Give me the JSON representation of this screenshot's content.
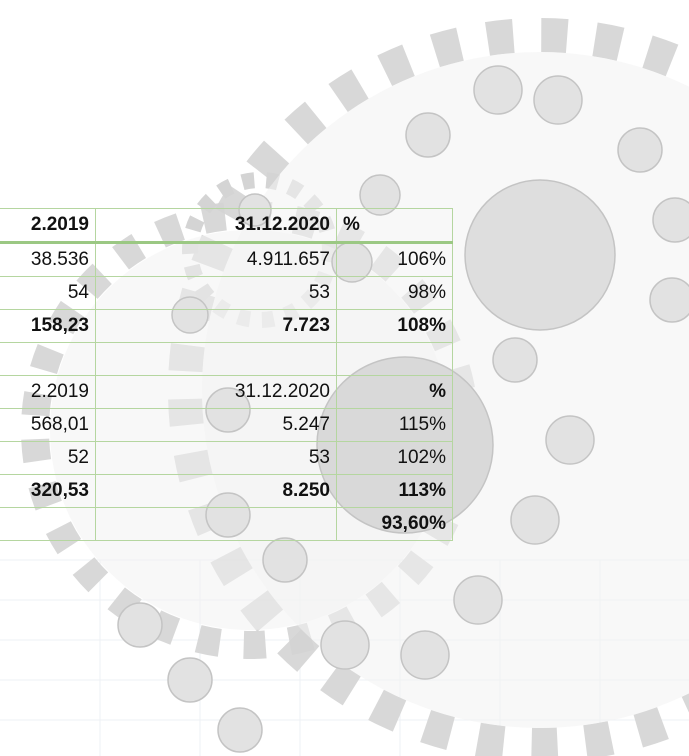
{
  "table": {
    "rows": [
      [
        "2.2019",
        "31.12.2020",
        "%"
      ],
      [
        "38.536",
        "4.911.657",
        "106%"
      ],
      [
        "54",
        "53",
        "98%"
      ],
      [
        "158,23",
        "7.723",
        "108%"
      ],
      [
        null,
        null,
        null
      ],
      [
        "2.2019",
        "31.12.2020",
        "%"
      ],
      [
        "568,01",
        "5.247",
        "115%"
      ],
      [
        "52",
        "53",
        "102%"
      ],
      [
        "320,53",
        "8.250",
        "113%"
      ],
      [
        null,
        null,
        "93,60%"
      ]
    ]
  }
}
